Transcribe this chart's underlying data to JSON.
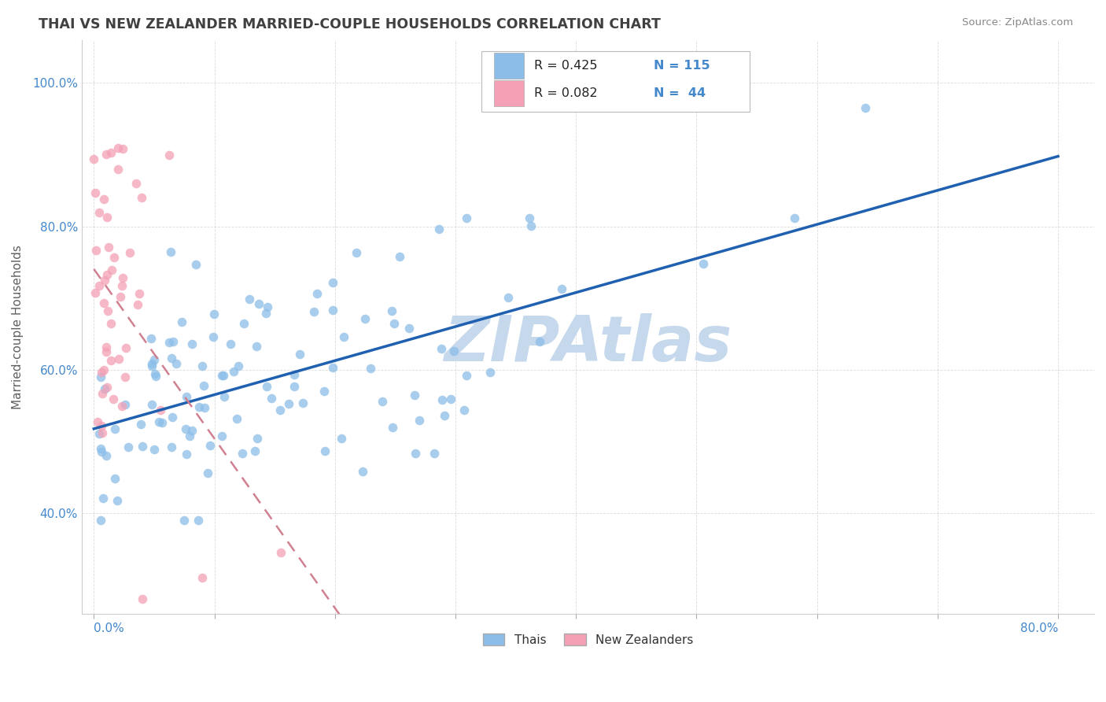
{
  "title": "THAI VS NEW ZEALANDER MARRIED-COUPLE HOUSEHOLDS CORRELATION CHART",
  "source": "Source: ZipAtlas.com",
  "ylabel": "Married-couple Households",
  "legend_r1": "R = 0.425",
  "legend_n1": "N = 115",
  "legend_r2": "R = 0.082",
  "legend_n2": "N = 44",
  "thai_color": "#8BBDE8",
  "nz_color": "#F4A0B5",
  "regression_thai_color": "#2060B0",
  "regression_nz_color": "#D08090",
  "watermark": "ZIPAtlas",
  "watermark_color": "#C5D8EC",
  "background_color": "#FFFFFF",
  "grid_color": "#CCCCCC",
  "title_color": "#404040",
  "axis_label_color": "#606060",
  "tick_label_color": "#4488CC",
  "xmin": -0.01,
  "xmax": 0.83,
  "ymin": 0.26,
  "ymax": 1.06,
  "yticks": [
    0.4,
    0.6,
    0.8,
    1.0
  ],
  "ytick_labels": [
    "40.0%",
    "60.0%",
    "80.0%",
    "100.0%"
  ]
}
